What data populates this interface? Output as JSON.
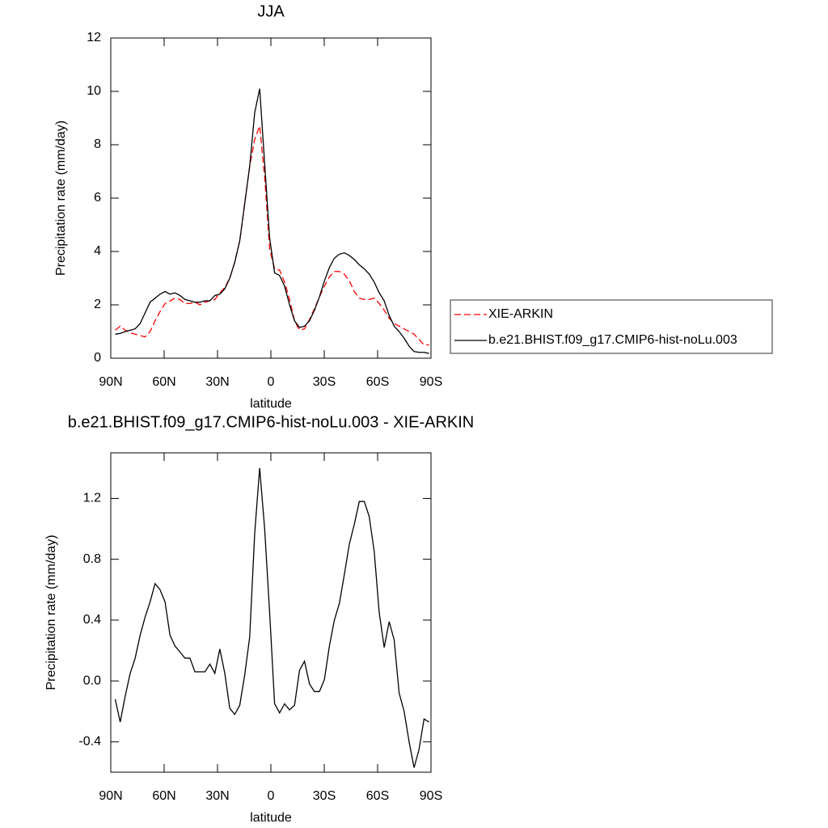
{
  "chart_data": [
    {
      "type": "line",
      "title": "JJA",
      "x_label": "latitude",
      "y_label": "Precipitation rate (mm/day)",
      "xlim": [
        90,
        -90
      ],
      "ylim": [
        0,
        12
      ],
      "xticks": [
        {
          "value": 90,
          "label": "90N"
        },
        {
          "value": 60,
          "label": "60N"
        },
        {
          "value": 30,
          "label": "30N"
        },
        0,
        {
          "value": -30,
          "label": "30S"
        },
        {
          "value": -60,
          "label": "60S"
        },
        {
          "value": -90,
          "label": "90S"
        }
      ],
      "yticks": [
        0,
        2,
        4,
        6,
        8,
        10,
        12
      ],
      "legend": "right",
      "x": [
        87.5,
        84.7,
        81.9,
        79.1,
        76.3,
        73.5,
        70.7,
        67.9,
        65.1,
        62.3,
        59.5,
        56.7,
        53.9,
        51.1,
        48.3,
        45.5,
        42.7,
        39.9,
        37.1,
        34.3,
        31.5,
        28.7,
        25.9,
        23.1,
        20.3,
        17.5,
        14.7,
        11.9,
        9.1,
        6.3,
        3.5,
        0.7,
        -2.1,
        -4.9,
        -7.7,
        -10.5,
        -13.3,
        -16.1,
        -18.9,
        -21.7,
        -24.5,
        -27.3,
        -30.1,
        -32.9,
        -35.7,
        -38.5,
        -41.3,
        -44.1,
        -46.9,
        -49.7,
        -52.5,
        -55.3,
        -58.1,
        -60.9,
        -63.7,
        -66.5,
        -69.3,
        -72.1,
        -74.9,
        -77.7,
        -80.5,
        -83.3,
        -86.1,
        -88.9
      ],
      "series": [
        {
          "name": "XIE-ARKIN",
          "color": "#ff0000",
          "dashed": true,
          "values": [
            1.05,
            1.2,
            1.05,
            0.95,
            0.9,
            0.85,
            0.8,
            1.0,
            1.4,
            1.75,
            2.05,
            2.15,
            2.25,
            2.2,
            2.05,
            2.05,
            2.1,
            2.0,
            2.1,
            2.15,
            2.2,
            2.45,
            2.65,
            3.0,
            3.6,
            4.4,
            5.8,
            7.2,
            8.2,
            8.7,
            6.8,
            4.1,
            3.35,
            3.3,
            2.85,
            2.2,
            1.4,
            1.05,
            1.1,
            1.45,
            1.85,
            2.3,
            2.7,
            3.05,
            3.25,
            3.25,
            3.15,
            2.9,
            2.5,
            2.25,
            2.2,
            2.2,
            2.25,
            2.05,
            1.8,
            1.5,
            1.3,
            1.2,
            1.1,
            1.0,
            0.9,
            0.7,
            0.5,
            0.5
          ]
        },
        {
          "name": "b.e21.BHIST.f09_g17.CMIP6-hist-noLu.003",
          "color": "#000000",
          "dashed": false,
          "values": [
            0.9,
            0.93,
            1.0,
            1.05,
            1.1,
            1.3,
            1.7,
            2.1,
            2.25,
            2.4,
            2.5,
            2.4,
            2.45,
            2.35,
            2.2,
            2.15,
            2.1,
            2.1,
            2.15,
            2.15,
            2.35,
            2.4,
            2.6,
            3.0,
            3.6,
            4.4,
            5.8,
            7.2,
            9.2,
            10.1,
            7.3,
            4.5,
            3.2,
            3.1,
            2.7,
            2.0,
            1.4,
            1.15,
            1.2,
            1.4,
            1.8,
            2.3,
            2.9,
            3.4,
            3.75,
            3.9,
            3.95,
            3.85,
            3.7,
            3.5,
            3.35,
            3.15,
            2.85,
            2.45,
            2.15,
            1.6,
            1.2,
            1.0,
            0.75,
            0.45,
            0.25,
            0.22,
            0.22,
            0.18
          ]
        }
      ]
    },
    {
      "type": "line",
      "title": "b.e21.BHIST.f09_g17.CMIP6-hist-noLu.003 - XIE-ARKIN",
      "x_label": "latitude",
      "y_label": "Precipitation rate (mm/day)",
      "xlim": [
        90,
        -90
      ],
      "ylim": [
        -0.6,
        1.5
      ],
      "xticks": [
        {
          "value": 90,
          "label": "90N"
        },
        {
          "value": 60,
          "label": "60N"
        },
        {
          "value": 30,
          "label": "30N"
        },
        0,
        {
          "value": -30,
          "label": "30S"
        },
        {
          "value": -60,
          "label": "60S"
        },
        {
          "value": -90,
          "label": "90S"
        }
      ],
      "yticks": [
        -0.4,
        {
          "value": 0,
          "label": "0.0"
        },
        0.4,
        0.8,
        1.2
      ],
      "color": "#000000",
      "x": [
        87.5,
        84.7,
        81.9,
        79.1,
        76.3,
        73.5,
        70.7,
        67.9,
        65.1,
        62.3,
        59.5,
        56.7,
        53.9,
        51.1,
        48.3,
        45.5,
        42.7,
        39.9,
        37.1,
        34.3,
        31.5,
        28.7,
        25.9,
        23.1,
        20.3,
        17.5,
        14.7,
        11.9,
        9.1,
        6.3,
        3.5,
        0.7,
        -2.1,
        -4.9,
        -7.7,
        -10.5,
        -13.3,
        -16.1,
        -18.9,
        -21.7,
        -24.5,
        -27.3,
        -30.1,
        -32.9,
        -35.7,
        -38.5,
        -41.3,
        -44.1,
        -46.9,
        -49.7,
        -52.5,
        -55.3,
        -58.1,
        -60.9,
        -63.7,
        -66.5,
        -69.3,
        -72.1,
        -74.9,
        -77.7,
        -80.5,
        -83.3,
        -86.1,
        -88.9
      ],
      "values": [
        -0.12,
        -0.27,
        -0.1,
        0.05,
        0.15,
        0.3,
        0.42,
        0.52,
        0.64,
        0.6,
        0.52,
        0.3,
        0.23,
        0.19,
        0.15,
        0.15,
        0.06,
        0.06,
        0.06,
        0.11,
        0.05,
        0.21,
        0.05,
        -0.18,
        -0.22,
        -0.16,
        0.04,
        0.29,
        0.97,
        1.4,
        1.0,
        0.45,
        -0.15,
        -0.21,
        -0.15,
        -0.19,
        -0.16,
        0.07,
        0.13,
        -0.02,
        -0.07,
        -0.07,
        0.01,
        0.23,
        0.4,
        0.51,
        0.7,
        0.9,
        1.03,
        1.18,
        1.18,
        1.08,
        0.85,
        0.45,
        0.22,
        0.39,
        0.27,
        -0.08,
        -0.2,
        -0.4,
        -0.57,
        -0.45,
        -0.25,
        -0.27
      ]
    }
  ]
}
